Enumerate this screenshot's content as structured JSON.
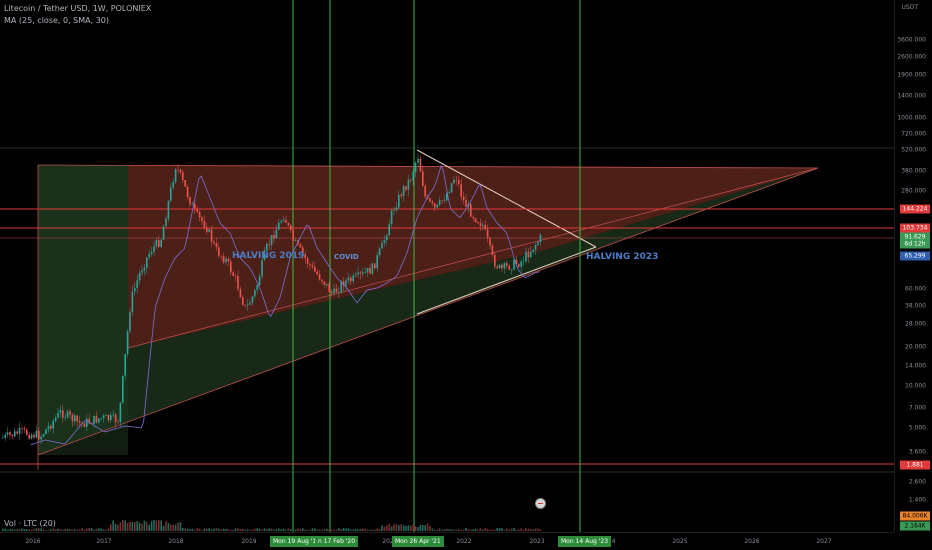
{
  "legend": {
    "symbol": "Litecoin / Tether USD, 1W, POLONIEX",
    "ma": "MA (25, close, 0, SMA, 30)"
  },
  "volume_label": "Vol · LTC (20)",
  "price_currency": "USDT",
  "price_ticks": [
    "3600.000",
    "2600.000",
    "1900.000",
    "1400.000",
    "1000.000",
    "720.000",
    "520.000",
    "380.000",
    "280.000",
    "200.000",
    "60.000",
    "38.000",
    "28.000",
    "20.000",
    "14.000",
    "10.000",
    "7.000",
    "5.000",
    "3.600",
    "2.600",
    "1.400",
    "1.000"
  ],
  "price_badges": [
    {
      "text": "144.224",
      "bg": "#e03a3a",
      "fg": "#ffffff"
    },
    {
      "text": "103.734",
      "bg": "#e03a3a",
      "fg": "#ffffff"
    },
    {
      "text": "91.629",
      "bg": "#3a9a55",
      "fg": "#ffffff"
    },
    {
      "text": "6d 12h",
      "bg": "#3a9a55",
      "fg": "#ffffff"
    },
    {
      "text": "65.299",
      "bg": "#2f5fae",
      "fg": "#ffffff"
    },
    {
      "text": "1.881",
      "bg": "#e03a3a",
      "fg": "#ffffff"
    },
    {
      "text": "84.006K",
      "bg": "#e8832a",
      "fg": "#000000"
    },
    {
      "text": "2.164K",
      "bg": "#3a9a55",
      "fg": "#000000"
    }
  ],
  "time_ticks": [
    "2016",
    "2017",
    "2018",
    "2019",
    "2020",
    "2021",
    "2022",
    "2023",
    "2024",
    "2025",
    "2026",
    "2027"
  ],
  "time_badges": [
    {
      "text": "Mon 19 Aug '19"
    },
    {
      "text": "n 17 Feb '20"
    },
    {
      "text": "Mon 26 Apr '21"
    },
    {
      "text": "Mon 14 Aug '23"
    }
  ],
  "annotations": {
    "halving_2019": "HALVING 2019",
    "covid": "COVID",
    "halving_2023": "HALVING 2023"
  },
  "colors": {
    "background": "#000000",
    "up": "#26a69a",
    "down": "#ef5350",
    "ma": "#7b6fd6",
    "vline": "#3dbb4a",
    "hline": "#e03a3a",
    "triangle_red": "#8a3a2a",
    "triangle_green": "#2e4a2a"
  },
  "chart_data": {
    "type": "candlestick",
    "price_scale": "log",
    "ylim": [
      1.0,
      3600.0
    ],
    "series": [
      {
        "name": "LTC/USDT weekly close (approx)",
        "x": [
          "2016-01",
          "2016-06",
          "2017-01",
          "2017-03",
          "2017-05",
          "2017-06",
          "2017-09",
          "2017-12",
          "2018-01",
          "2018-04",
          "2018-08",
          "2018-12",
          "2019-03",
          "2019-06",
          "2019-09",
          "2019-12",
          "2020-03",
          "2020-08",
          "2020-12",
          "2021-02",
          "2021-05",
          "2021-07",
          "2021-11",
          "2022-03",
          "2022-06",
          "2022-11",
          "2023-01"
        ],
        "values": [
          3.5,
          4.2,
          4.3,
          4.8,
          28,
          40,
          55,
          300,
          230,
          140,
          60,
          25,
          55,
          130,
          70,
          45,
          35,
          55,
          120,
          200,
          300,
          140,
          260,
          120,
          55,
          70,
          91.6
        ]
      }
    ],
    "horizontal_levels": [
      144.224,
      103.734,
      91.629,
      65.299,
      1.881
    ],
    "vertical_markers": [
      "2019-08-19",
      "2020-02-17",
      "2021-04-26",
      "2023-08-14"
    ]
  }
}
